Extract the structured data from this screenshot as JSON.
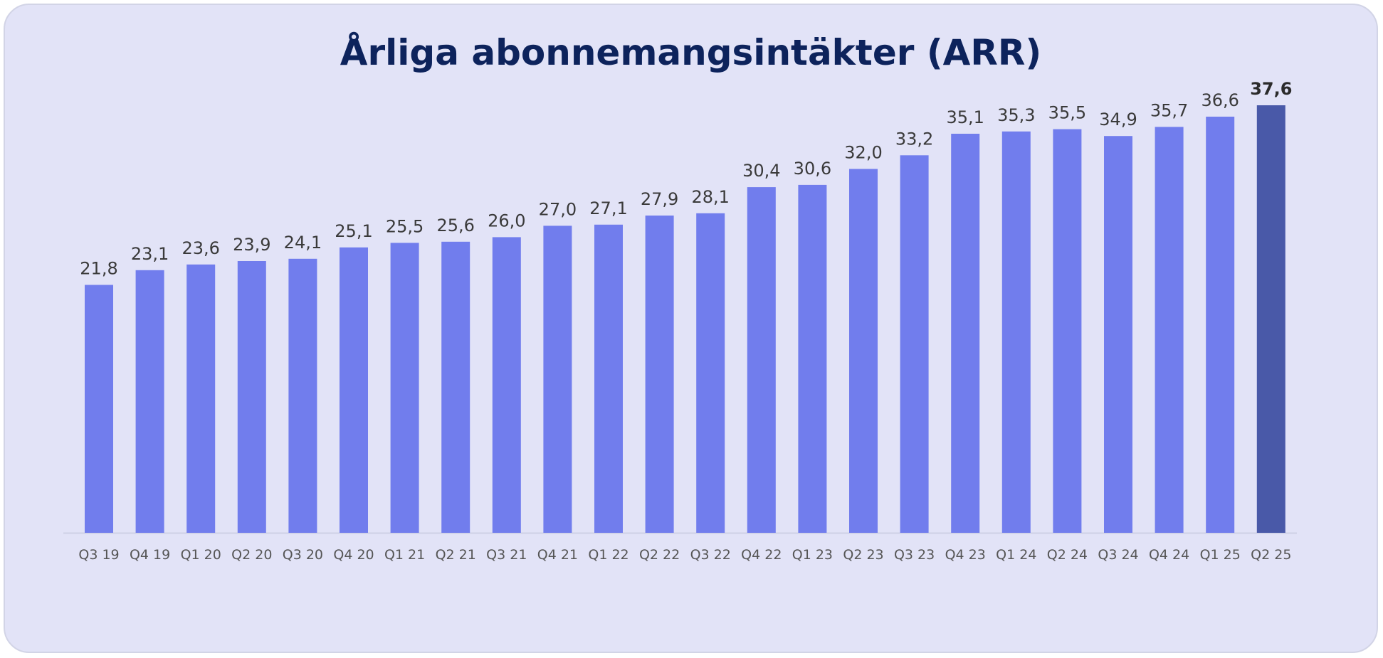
{
  "chart_data": {
    "type": "bar",
    "title": "Årliga abonnemangsintäkter (ARR)",
    "xlabel": "",
    "ylabel": "",
    "ylim": [
      0,
      37.6
    ],
    "grid": false,
    "legend": "none",
    "categories": [
      "Q3 19",
      "Q4 19",
      "Q1 20",
      "Q2 20",
      "Q3 20",
      "Q4 20",
      "Q1 21",
      "Q2 21",
      "Q3 21",
      "Q4 21",
      "Q1 22",
      "Q2 22",
      "Q3 22",
      "Q4 22",
      "Q1 23",
      "Q2 23",
      "Q3 23",
      "Q4 23",
      "Q1 24",
      "Q2 24",
      "Q3 24",
      "Q4 24",
      "Q1 25",
      "Q2 25"
    ],
    "values": [
      21.8,
      23.1,
      23.6,
      23.9,
      24.1,
      25.1,
      25.5,
      25.6,
      26.0,
      27.0,
      27.1,
      27.9,
      28.1,
      30.4,
      30.6,
      32.0,
      33.2,
      35.1,
      35.3,
      35.5,
      34.9,
      35.7,
      36.6,
      37.6
    ],
    "value_labels": [
      "21,8",
      "23,1",
      "23,6",
      "23,9",
      "24,1",
      "25,1",
      "25,5",
      "25,6",
      "26,0",
      "27,0",
      "27,1",
      "27,9",
      "28,1",
      "30,4",
      "30,6",
      "32,0",
      "33,2",
      "35,1",
      "35,3",
      "35,5",
      "34,9",
      "35,7",
      "36,6",
      "37,6"
    ],
    "highlight_index": 23,
    "colors": {
      "bar": "#717ded",
      "highlight_bar": "#4959a8",
      "background": "#e2e3f7",
      "title": "#0d235c",
      "axis": "#cfd1e6"
    }
  }
}
